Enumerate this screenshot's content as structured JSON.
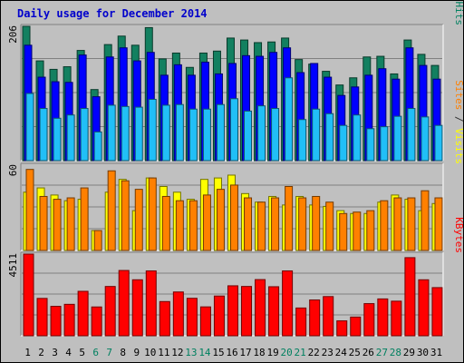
{
  "chart_data": {
    "type": "bar",
    "title": "Daily usage for December 2014",
    "categories": [
      "1",
      "2",
      "3",
      "4",
      "5",
      "6",
      "7",
      "8",
      "9",
      "10",
      "11",
      "12",
      "13",
      "14",
      "15",
      "16",
      "17",
      "18",
      "19",
      "20",
      "21",
      "22",
      "23",
      "24",
      "25",
      "26",
      "27",
      "28",
      "29",
      "30",
      "31"
    ],
    "weekend_days": [
      "6",
      "7",
      "13",
      "14",
      "20",
      "21",
      "27",
      "28"
    ],
    "panels": [
      {
        "name": "pages_files_hits",
        "ymax": 206,
        "ymax_label": "206",
        "legend": [
          {
            "label": "Pages",
            "color": "#00aaff"
          },
          {
            "label": " / ",
            "color": "#333333"
          },
          {
            "label": "Files",
            "color": "#0000ff"
          },
          {
            "label": " / ",
            "color": "#333333"
          },
          {
            "label": "Hits",
            "color": "#008060"
          }
        ],
        "series": [
          {
            "name": "Hits",
            "color": "#138060",
            "values": [
              206,
              153,
              140,
              144,
              169,
              109,
              178,
              191,
              177,
              204,
              156,
              165,
              143,
              165,
              168,
              188,
              185,
              181,
              182,
              188,
              155,
              148,
              137,
              116,
              127,
              159,
              160,
              133,
              185,
              163,
              146
            ]
          },
          {
            "name": "Files",
            "color": "#0000ff",
            "values": [
              177,
              128,
              121,
              120,
              162,
              98,
              159,
              173,
              153,
              166,
              131,
              147,
              131,
              151,
              133,
              149,
              161,
              160,
              166,
              173,
              135,
              149,
              128,
              100,
              113,
              131,
              141,
              125,
              173,
              146,
              125
            ]
          },
          {
            "name": "Pages",
            "color": "#21bff7",
            "values": [
              103,
              80,
              65,
              70,
              80,
              44,
              85,
              83,
              82,
              94,
              85,
              86,
              79,
              79,
              86,
              95,
              76,
              84,
              80,
              127,
              63,
              79,
              72,
              54,
              70,
              49,
              52,
              68,
              80,
              67,
              54
            ]
          }
        ]
      },
      {
        "name": "sites_visits",
        "ymax": 60,
        "ymax_label": "60",
        "legend": [
          {
            "label": "Sites",
            "color": "#ff8000"
          },
          {
            "label": " / ",
            "color": "#333333"
          },
          {
            "label": "Visits",
            "color": "#ffff00"
          }
        ],
        "series": [
          {
            "name": "Visits",
            "color": "#ffff00",
            "values": [
              41,
              44,
              39,
              35,
              36,
              14,
              41,
              50,
              28,
              51,
              45,
              41,
              36,
              50,
              51,
              53,
              40,
              34,
              38,
              32,
              38,
              32,
              31,
              28,
              26,
              26,
              34,
              39,
              36,
              28,
              33
            ]
          },
          {
            "name": "Sites",
            "color": "#ff8000",
            "values": [
              57,
              38,
              36,
              37,
              44,
              14,
              56,
              49,
              43,
              51,
              38,
              35,
              35,
              39,
              43,
              46,
              37,
              34,
              37,
              45,
              37,
              38,
              34,
              26,
              27,
              28,
              35,
              37,
              37,
              42,
              37
            ]
          }
        ]
      },
      {
        "name": "kbytes",
        "ymax": 4511,
        "ymax_label": "4511",
        "legend": [
          {
            "label": "KBytes",
            "color": "#ff0000"
          }
        ],
        "series": [
          {
            "name": "KBytes",
            "color": "#ff0000",
            "values": [
              4511,
              2064,
              1626,
              1737,
              2456,
              1592,
              2723,
              3607,
              3093,
              3582,
              1890,
              2420,
              2070,
              1596,
              2195,
              2760,
              2724,
              3103,
              2709,
              3582,
              1534,
              1979,
              2166,
              824,
              1034,
              1776,
              2036,
              1911,
              4315,
              3093,
              2660
            ]
          }
        ]
      }
    ]
  }
}
